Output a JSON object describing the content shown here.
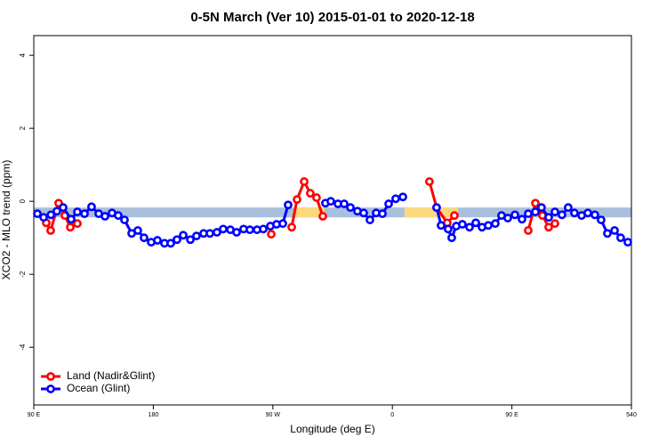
{
  "chart_data": {
    "type": "line",
    "title": "0-5N March (Ver 10)   2015-01-01 to 2020-12-18",
    "xlabel": "Longitude (deg E)",
    "ylabel": "XCO2 - MLO trend (ppm)",
    "xlim": [
      90,
      540
    ],
    "ylim": [
      -5.58,
      4.54
    ],
    "xticks": [
      {
        "value": 90,
        "label": "90 E"
      },
      180,
      {
        "value": 270,
        "label": "90 W"
      },
      {
        "value": 360,
        "label": "0"
      },
      {
        "value": 450,
        "label": "90 E"
      },
      540
    ],
    "yticks": [
      -4,
      -2,
      0,
      2,
      4
    ],
    "legend": "bottom-left",
    "band_y": [
      -0.44,
      -0.17
    ],
    "bands": [
      {
        "color": "#a9bfdc",
        "x": [
          90,
          540
        ]
      },
      {
        "color": "#fdd97e",
        "x": [
          285.5,
          309
        ]
      },
      {
        "color": "#fdd97e",
        "x": [
          369,
          409.5
        ]
      }
    ],
    "series": [
      {
        "name": "Land (Nadir&Glint)",
        "color": "#ff0000",
        "x": [
          99.4,
          102.7,
          108.7,
          113.4,
          117.5,
          122.8,
          null,
          268.8,
          null,
          284.2,
          288.2,
          293.6,
          298.2,
          302.9,
          307.6,
          null,
          387.9,
          393.3,
          401.3,
          406.7,
          null,
          462.3,
          467.7,
          473.0,
          477.7,
          482.4
        ],
        "values": [
          -0.59,
          -0.8,
          -0.05,
          -0.39,
          -0.71,
          -0.61,
          null,
          -0.9,
          null,
          -0.71,
          0.05,
          0.54,
          0.22,
          0.1,
          -0.41,
          null,
          0.54,
          -0.17,
          -0.59,
          -0.39,
          null,
          -0.8,
          -0.05,
          -0.39,
          -0.71,
          -0.61
        ]
      },
      {
        "name": "Ocean (Glint)",
        "color": "#0000ff",
        "x": [
          92.7,
          97.4,
          102.9,
          107.4,
          112.1,
          118.1,
          122.8,
          128.2,
          133.5,
          138.9,
          143.6,
          148.9,
          153.6,
          158.3,
          163.7,
          168.3,
          173.0,
          178.4,
          183.1,
          188.4,
          193.1,
          197.8,
          202.5,
          207.9,
          212.5,
          217.9,
          222.6,
          227.9,
          232.6,
          238.0,
          242.7,
          248.0,
          252.7,
          258.1,
          262.8,
          268.1,
          272.8,
          277.5,
          281.5,
          null,
          309.6,
          313.6,
          319.0,
          323.7,
          328.4,
          333.7,
          338.4,
          343.1,
          347.8,
          352.5,
          357.2,
          362.5,
          367.9,
          null,
          393.3,
          396.7,
          402.0,
          404.7,
          408.1,
          412.7,
          418.1,
          422.8,
          427.5,
          432.2,
          437.5,
          442.2,
          446.9,
          452.3,
          457.6,
          462.3,
          467.7,
          472.3,
          477.7,
          482.4,
          487.7,
          492.4,
          497.1,
          502.5,
          507.2,
          512.5,
          517.2,
          521.9,
          527.3,
          531.9,
          537.3
        ],
        "values": [
          -0.34,
          -0.44,
          -0.37,
          -0.27,
          -0.17,
          -0.49,
          -0.29,
          -0.34,
          -0.15,
          -0.34,
          -0.41,
          -0.32,
          -0.39,
          -0.51,
          -0.88,
          -0.8,
          -1.0,
          -1.12,
          -1.07,
          -1.15,
          -1.15,
          -1.05,
          -0.93,
          -1.05,
          -0.95,
          -0.88,
          -0.88,
          -0.85,
          -0.76,
          -0.78,
          -0.85,
          -0.76,
          -0.78,
          -0.78,
          -0.76,
          -0.68,
          -0.63,
          -0.61,
          -0.1,
          null,
          -0.05,
          0.0,
          -0.07,
          -0.07,
          -0.17,
          -0.27,
          -0.32,
          -0.51,
          -0.32,
          -0.34,
          -0.07,
          0.07,
          0.12,
          null,
          -0.17,
          -0.66,
          -0.76,
          -1.0,
          -0.68,
          -0.63,
          -0.71,
          -0.59,
          -0.71,
          -0.66,
          -0.61,
          -0.39,
          -0.46,
          -0.37,
          -0.49,
          -0.34,
          -0.29,
          -0.17,
          -0.44,
          -0.29,
          -0.37,
          -0.17,
          -0.32,
          -0.39,
          -0.32,
          -0.37,
          -0.51,
          -0.88,
          -0.8,
          -1.0,
          -1.12
        ]
      }
    ]
  }
}
